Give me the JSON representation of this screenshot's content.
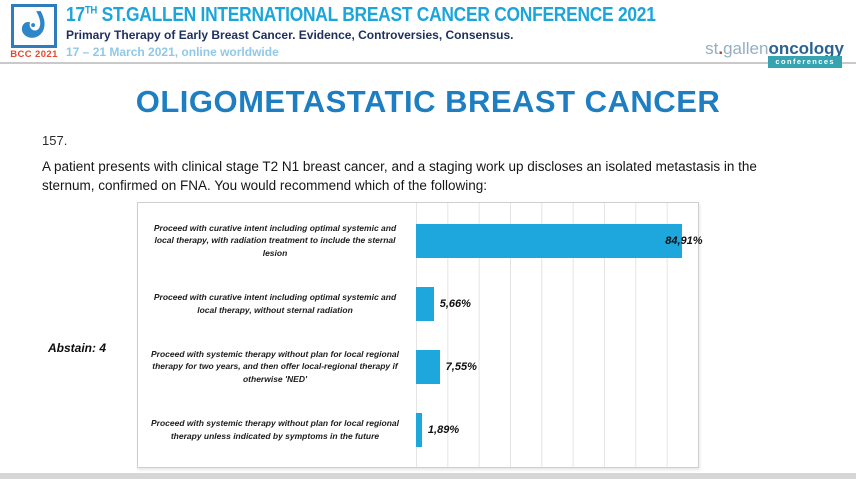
{
  "header": {
    "logo_badge": "BCC 2021",
    "title_prefix": "17",
    "title_sup": "TH",
    "title_main": " ST.GALLEN INTERNATIONAL BREAST CANCER CONFERENCE 2021",
    "subtitle": "Primary Therapy of Early Breast Cancer. Evidence, Controversies, Consensus.",
    "dates": "17 – 21 March 2021, online worldwide",
    "brand": {
      "part1": "st",
      "dot": ".",
      "part2": "gallen",
      "part3": "oncology",
      "badge": "conferences"
    }
  },
  "slide": {
    "title": "OLIGOMETASTATIC BREAST CANCER",
    "question_number": "157.",
    "question_text": "A patient presents with clinical stage T2 N1 breast cancer, and a staging work up discloses an isolated metastasis in the sternum, confirmed on FNA.  You would recommend which of the following:",
    "abstain_label": "Abstain: 4"
  },
  "chart_data": {
    "type": "bar",
    "orientation": "horizontal",
    "title": "",
    "categories": [
      "Proceed with curative intent including optimal systemic and local therapy, with radiation treatment to include the sternal lesion",
      "Proceed with curative intent including optimal systemic and local therapy, without sternal radiation",
      "Proceed with systemic therapy without plan for local regional therapy for two years, and then offer local-regional therapy if otherwise 'NED'",
      "Proceed with systemic therapy without plan for local regional therapy unless indicated by symptoms in the future"
    ],
    "values": [
      84.91,
      5.66,
      7.55,
      1.89
    ],
    "value_labels": [
      "84,91%",
      "5,66%",
      "7,55%",
      "1,89%"
    ],
    "xlim": [
      0,
      90
    ],
    "gridline_step": 10,
    "grid": true,
    "legend_position": "none",
    "bar_color": "#1ea7dd",
    "abstain": "Abstain: 4"
  },
  "colors": {
    "header_title": "#1ca5db",
    "header_subtitle": "#20305e",
    "header_dates": "#8fc8e8",
    "bcc_badge_text": "#e2482e",
    "slide_title": "#1e7ec2",
    "brand_light": "#93afc4",
    "brand_dark": "#2a6391",
    "brand_badge_bg": "#35a3b0",
    "bar": "#1ea7dd"
  }
}
